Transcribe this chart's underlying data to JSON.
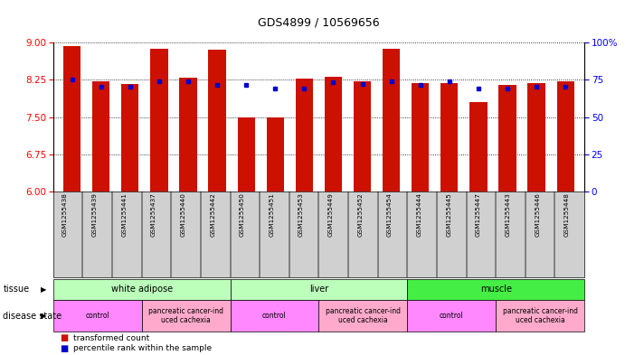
{
  "title": "GDS4899 / 10569656",
  "samples": [
    "GSM1255438",
    "GSM1255439",
    "GSM1255441",
    "GSM1255437",
    "GSM1255440",
    "GSM1255442",
    "GSM1255450",
    "GSM1255451",
    "GSM1255453",
    "GSM1255449",
    "GSM1255452",
    "GSM1255454",
    "GSM1255444",
    "GSM1255445",
    "GSM1255447",
    "GSM1255443",
    "GSM1255446",
    "GSM1255448"
  ],
  "red_values": [
    8.93,
    8.22,
    8.17,
    8.87,
    8.29,
    8.85,
    7.5,
    7.5,
    8.28,
    8.31,
    8.22,
    8.87,
    8.19,
    8.19,
    7.8,
    8.15,
    8.19,
    8.22
  ],
  "blue_values": [
    8.25,
    8.12,
    8.12,
    8.22,
    8.22,
    8.15,
    8.15,
    8.07,
    8.07,
    8.2,
    8.17,
    8.22,
    8.15,
    8.22,
    8.07,
    8.08,
    8.12,
    8.12
  ],
  "ylim_left": [
    6,
    9
  ],
  "ylim_right": [
    0,
    100
  ],
  "yticks_left": [
    6,
    6.75,
    7.5,
    8.25,
    9
  ],
  "yticks_right": [
    0,
    25,
    50,
    75,
    100
  ],
  "tissue_groups": [
    {
      "label": "white adipose",
      "start": 0,
      "end": 6,
      "color": "#aaffaa"
    },
    {
      "label": "liver",
      "start": 6,
      "end": 12,
      "color": "#aaffaa"
    },
    {
      "label": "muscle",
      "start": 12,
      "end": 18,
      "color": "#44dd44"
    }
  ],
  "disease_groups": [
    {
      "label": "control",
      "start": 0,
      "end": 3,
      "color": "#ff88ff"
    },
    {
      "label": "pancreatic cancer-ind\nuced cachexia",
      "start": 3,
      "end": 6,
      "color": "#ffaacc"
    },
    {
      "label": "control",
      "start": 6,
      "end": 9,
      "color": "#ff88ff"
    },
    {
      "label": "pancreatic cancer-ind\nuced cachexia",
      "start": 9,
      "end": 12,
      "color": "#ffaacc"
    },
    {
      "label": "control",
      "start": 12,
      "end": 15,
      "color": "#ff88ff"
    },
    {
      "label": "pancreatic cancer-ind\nuced cachexia",
      "start": 15,
      "end": 18,
      "color": "#ffaacc"
    }
  ],
  "bar_color": "#cc1100",
  "blue_color": "#0000cc",
  "bar_bottom": 6,
  "bar_width": 0.6,
  "xlabel_gray": "#cccccc",
  "label_fontsize": 6.5,
  "tick_fontsize": 7.5
}
